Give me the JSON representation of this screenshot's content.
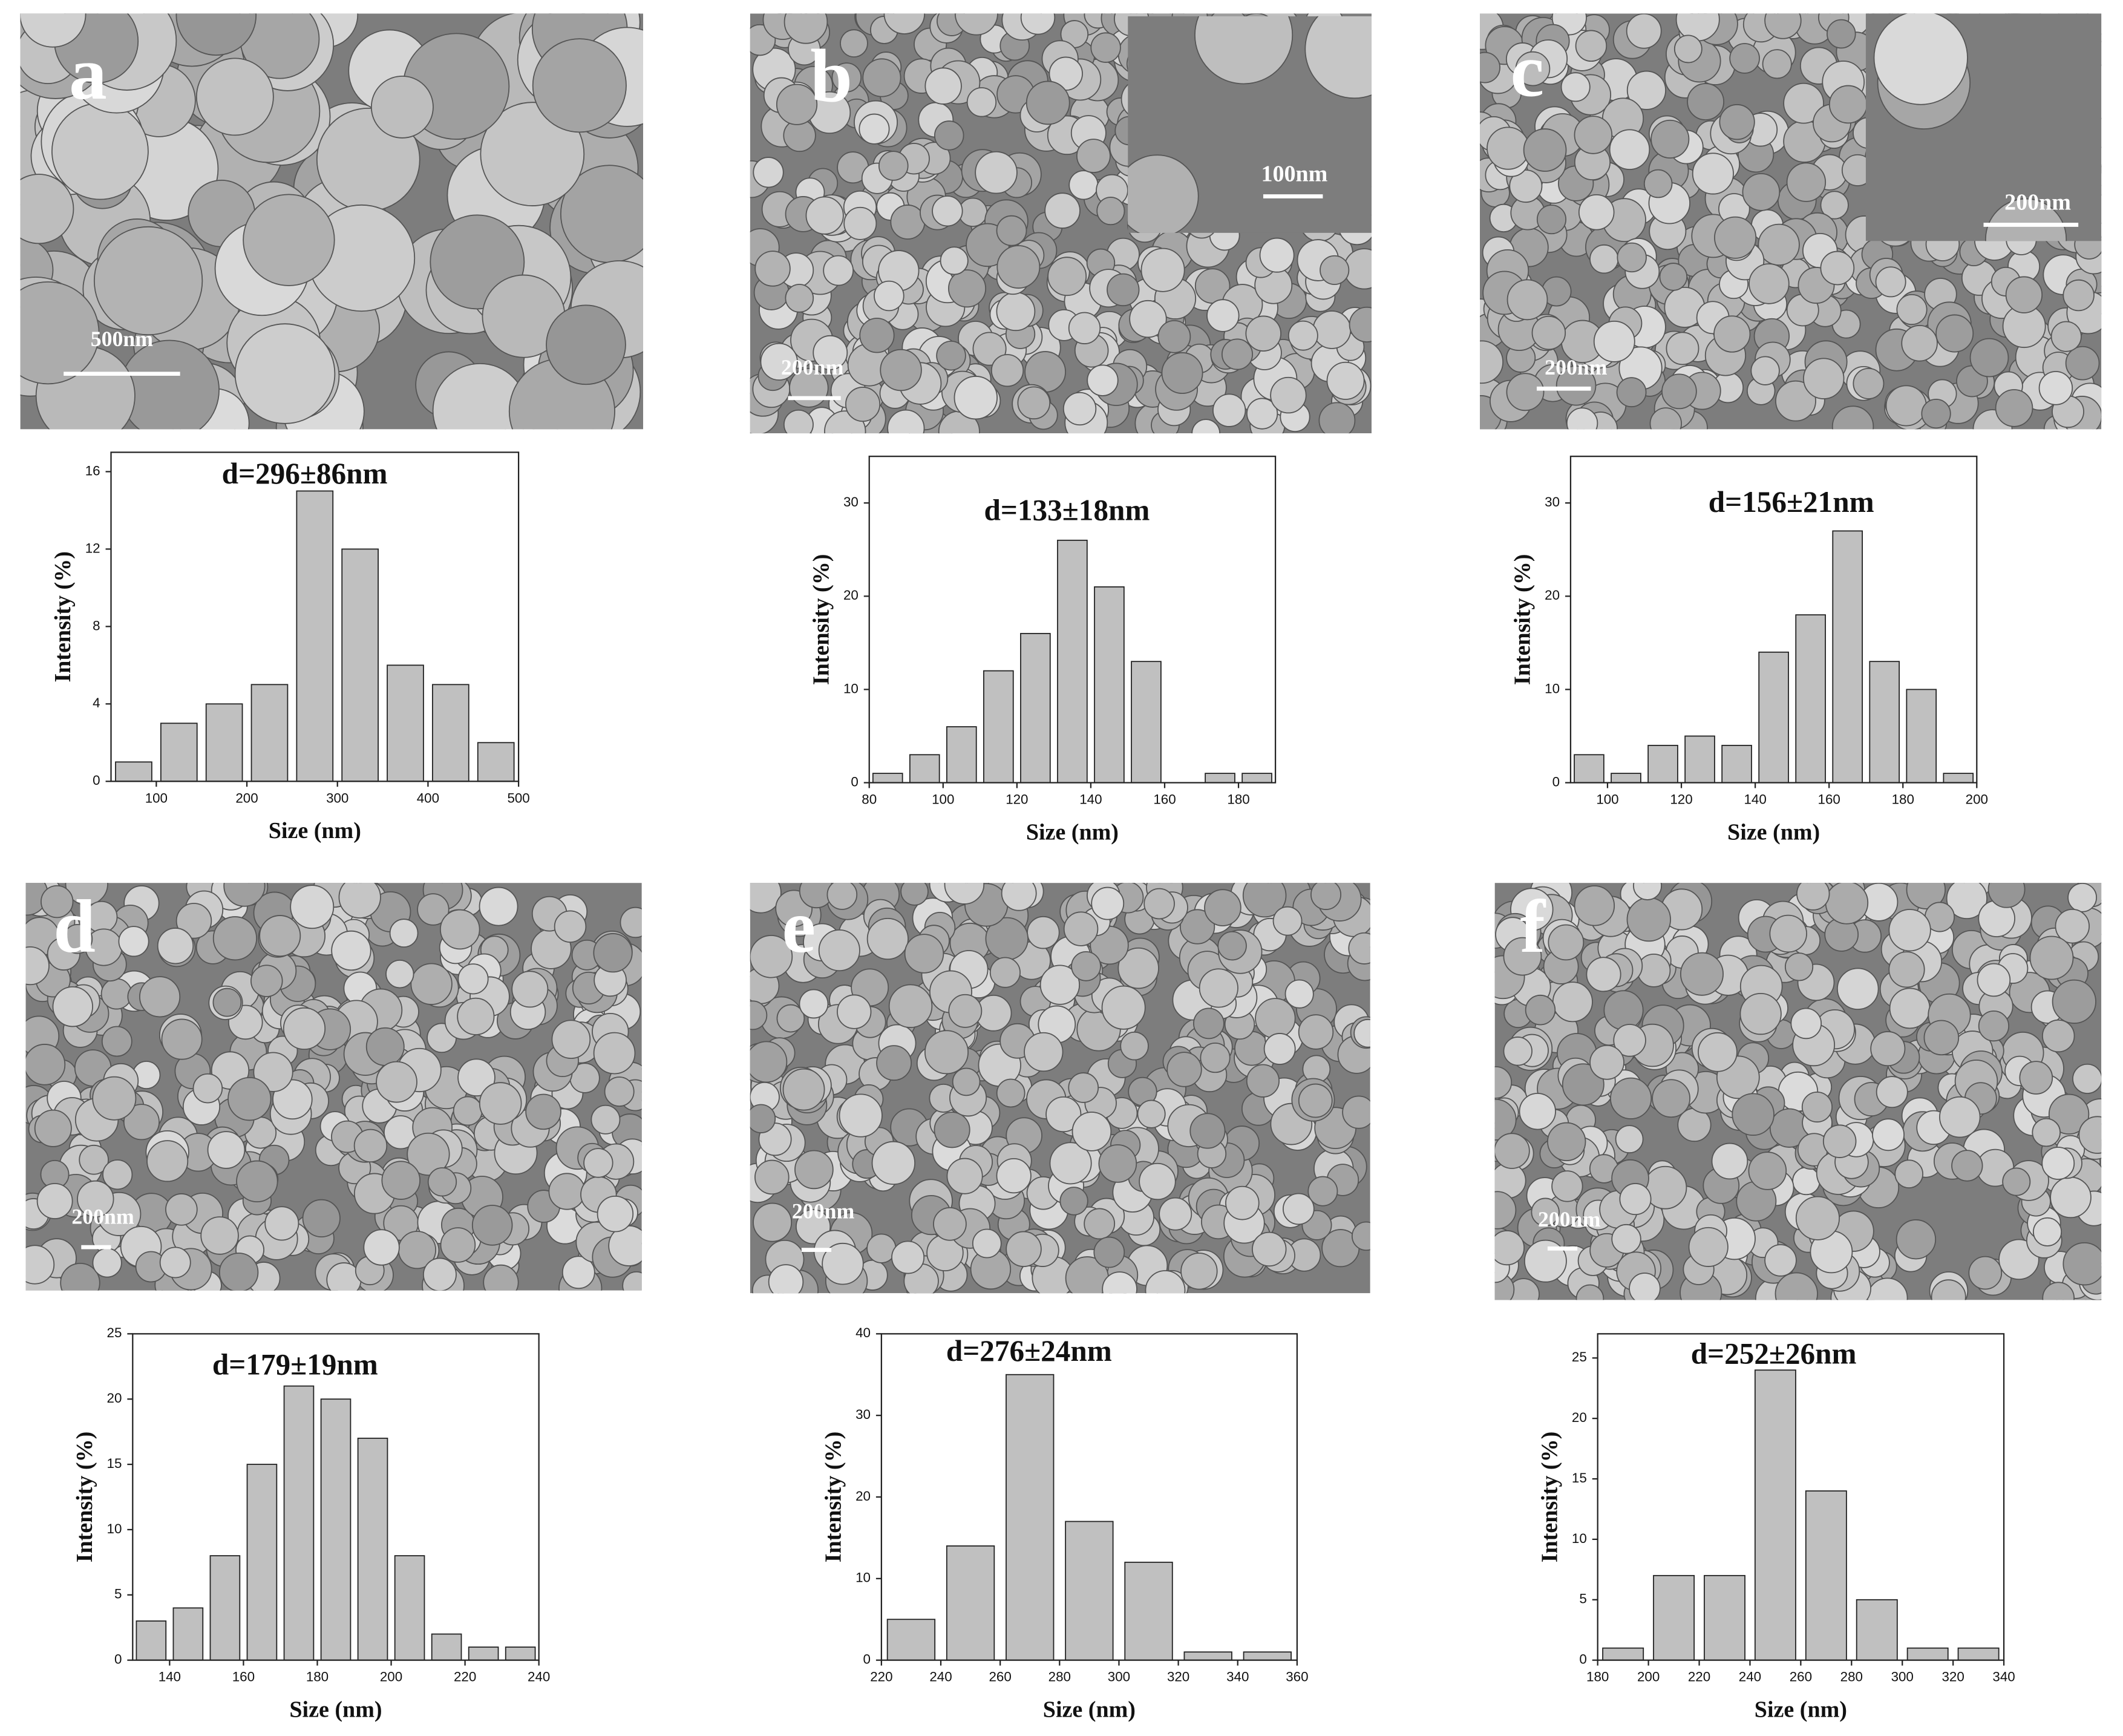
{
  "chart_data": [
    {
      "type": "histogram",
      "panel": "a",
      "scale_bar": "500nm",
      "title": "d=296±86nm",
      "xlabel": "Size (nm)",
      "ylabel": "Intensity (%)",
      "bins": [
        50,
        100,
        150,
        200,
        250,
        300,
        350,
        400,
        450,
        500
      ],
      "counts": [
        1,
        3,
        4,
        5,
        15,
        12,
        6,
        5,
        2
      ],
      "color": "#c0c0c0",
      "xlim": [
        50,
        500
      ],
      "ylim": [
        0,
        17
      ],
      "xticks": [
        100,
        200,
        300,
        400,
        500
      ],
      "yticks": [
        0,
        4,
        8,
        12,
        16
      ]
    },
    {
      "type": "histogram",
      "panel": "b",
      "scale_bar": "200nm",
      "inset_scale_bar": "100nm",
      "title": "d=133±18nm",
      "xlabel": "Size (nm)",
      "ylabel": "Intensity (%)",
      "bins": [
        80,
        90,
        100,
        110,
        120,
        130,
        140,
        150,
        160,
        170,
        180,
        190
      ],
      "counts": [
        1,
        3,
        6,
        12,
        16,
        26,
        21,
        13,
        0,
        1,
        1
      ],
      "color": "#c0c0c0",
      "xlim": [
        80,
        190
      ],
      "ylim": [
        0,
        35
      ],
      "xticks": [
        80,
        100,
        120,
        140,
        160,
        180
      ],
      "yticks": [
        0,
        10,
        20,
        30
      ]
    },
    {
      "type": "histogram",
      "panel": "c",
      "scale_bar": "200nm",
      "inset_scale_bar": "200nm",
      "title": "d=156±21nm",
      "xlabel": "Size (nm)",
      "ylabel": "Intensity (%)",
      "bins": [
        90,
        100,
        110,
        120,
        130,
        140,
        150,
        160,
        170,
        180,
        190,
        200
      ],
      "counts": [
        3,
        1,
        4,
        5,
        4,
        14,
        18,
        27,
        13,
        10,
        1
      ],
      "color": "#c0c0c0",
      "xlim": [
        90,
        200
      ],
      "ylim": [
        0,
        35
      ],
      "xticks": [
        100,
        120,
        140,
        160,
        180,
        200
      ],
      "yticks": [
        0,
        10,
        20,
        30
      ]
    },
    {
      "type": "histogram",
      "panel": "d",
      "scale_bar": "200nm",
      "title": "d=179±19nm",
      "xlabel": "Size (nm)",
      "ylabel": "Intensity (%)",
      "bins": [
        130,
        140,
        150,
        160,
        170,
        180,
        190,
        200,
        210,
        220,
        230,
        240
      ],
      "counts": [
        3,
        4,
        8,
        15,
        21,
        20,
        17,
        8,
        2,
        1,
        1
      ],
      "color": "#c0c0c0",
      "xlim": [
        130,
        240
      ],
      "ylim": [
        0,
        25
      ],
      "xticks": [
        140,
        160,
        180,
        200,
        220,
        240
      ],
      "yticks": [
        0,
        5,
        10,
        15,
        20,
        25
      ]
    },
    {
      "type": "histogram",
      "panel": "e",
      "scale_bar": "200nm",
      "title": "d=276±24nm",
      "xlabel": "Size (nm)",
      "ylabel": "Intensity (%)",
      "bins": [
        220,
        240,
        260,
        280,
        300,
        320,
        340,
        360
      ],
      "counts": [
        5,
        14,
        35,
        17,
        12,
        1,
        1
      ],
      "color": "#c0c0c0",
      "xlim": [
        220,
        360
      ],
      "ylim": [
        0,
        40
      ],
      "xticks": [
        220,
        240,
        260,
        280,
        300,
        320,
        340,
        360
      ],
      "yticks": [
        0,
        10,
        20,
        30,
        40
      ]
    },
    {
      "type": "histogram",
      "panel": "f",
      "scale_bar": "200nm",
      "title": "d=252±26nm",
      "xlabel": "Size (nm)",
      "ylabel": "Intensity (%)",
      "bins": [
        180,
        200,
        220,
        240,
        260,
        280,
        300,
        320,
        340
      ],
      "counts": [
        1,
        7,
        7,
        24,
        14,
        5,
        1,
        1
      ],
      "color": "#c0c0c0",
      "xlim": [
        180,
        340
      ],
      "ylim": [
        0,
        27
      ],
      "xticks": [
        180,
        200,
        220,
        240,
        260,
        280,
        300,
        320,
        340
      ],
      "yticks": [
        0,
        5,
        10,
        15,
        20,
        25
      ]
    }
  ]
}
